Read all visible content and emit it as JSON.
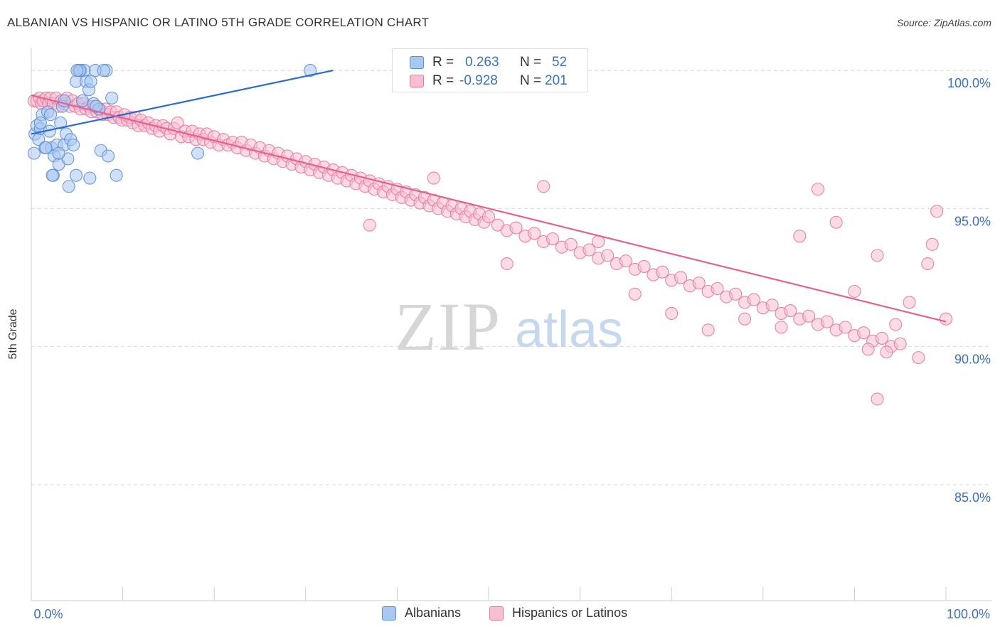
{
  "title": "ALBANIAN VS HISPANIC OR LATINO 5TH GRADE CORRELATION CHART",
  "source": "Source: ZipAtlas.com",
  "watermark": {
    "zip": "ZIP",
    "atlas": "atlas"
  },
  "legend": {
    "rows": [
      {
        "r_label": "R =",
        "r_value": "0.263",
        "n_label": "N =",
        "n_value": "52"
      },
      {
        "r_label": "R =",
        "r_value": "-0.928",
        "n_label": "N =",
        "n_value": "201"
      }
    ]
  },
  "colors": {
    "albanian_fill": "#a9c8f0",
    "albanian_stroke": "#5b8fd6",
    "albanian_line": "#2a6ccf",
    "hispanic_fill": "#f8bfd2",
    "hispanic_stroke": "#e9789f",
    "hispanic_line": "#e4628f",
    "tick_label": "#3b6fc9",
    "grid": "#d9d9d9"
  },
  "chart_data": {
    "type": "scatter",
    "title": "ALBANIAN VS HISPANIC OR LATINO 5TH GRADE CORRELATION CHART",
    "xlabel": "",
    "ylabel": "5th Grade",
    "xlim": [
      0,
      100
    ],
    "ylim": [
      80.8,
      100.8
    ],
    "x_tick_labels": [
      "0.0%",
      "100.0%"
    ],
    "y_ticks": [
      85,
      90,
      95,
      100
    ],
    "y_tick_labels": [
      "85.0%",
      "90.0%",
      "95.0%",
      "100.0%"
    ],
    "grid": "horizontal dashed",
    "legend_placement": "top-center",
    "series": [
      {
        "name": "Albanians",
        "r": 0.263,
        "n": 52,
        "trend": {
          "x": [
            0,
            33.0
          ],
          "y": [
            97.7,
            100.0
          ]
        },
        "points": [
          [
            0.4,
            97.7
          ],
          [
            0.6,
            98.0
          ],
          [
            0.8,
            97.5
          ],
          [
            1.0,
            97.9
          ],
          [
            1.2,
            98.4
          ],
          [
            1.5,
            97.2
          ],
          [
            1.8,
            98.5
          ],
          [
            2.0,
            97.8
          ],
          [
            2.2,
            97.2
          ],
          [
            2.5,
            96.9
          ],
          [
            2.4,
            96.2
          ],
          [
            2.8,
            97.3
          ],
          [
            3.0,
            96.6
          ],
          [
            3.2,
            98.1
          ],
          [
            3.4,
            98.7
          ],
          [
            3.6,
            97.3
          ],
          [
            3.8,
            97.7
          ],
          [
            4.0,
            96.8
          ],
          [
            4.1,
            95.8
          ],
          [
            4.3,
            97.5
          ],
          [
            4.6,
            97.3
          ],
          [
            4.9,
            99.6
          ],
          [
            5.2,
            100.0
          ],
          [
            5.4,
            100.0
          ],
          [
            5.6,
            98.9
          ],
          [
            5.8,
            100.0
          ],
          [
            6.0,
            99.6
          ],
          [
            6.3,
            99.3
          ],
          [
            6.5,
            99.6
          ],
          [
            6.8,
            98.8
          ],
          [
            7.0,
            100.0
          ],
          [
            7.4,
            98.6
          ],
          [
            7.6,
            97.1
          ],
          [
            8.2,
            100.0
          ],
          [
            8.4,
            96.9
          ],
          [
            8.8,
            99.0
          ],
          [
            9.3,
            96.2
          ],
          [
            0.3,
            97.0
          ],
          [
            1.0,
            98.1
          ],
          [
            1.6,
            97.2
          ],
          [
            2.3,
            96.2
          ],
          [
            3.0,
            97.0
          ],
          [
            4.9,
            96.2
          ],
          [
            5.3,
            100.0
          ],
          [
            6.4,
            96.1
          ],
          [
            7.1,
            98.7
          ],
          [
            7.9,
            100.0
          ],
          [
            18.2,
            97.0
          ],
          [
            30.5,
            100.0
          ],
          [
            2.1,
            98.4
          ],
          [
            5.0,
            100.0
          ],
          [
            3.6,
            98.9
          ]
        ]
      },
      {
        "name": "Hispanics or Latinos",
        "r": -0.928,
        "n": 201,
        "trend": {
          "x": [
            0,
            100
          ],
          "y": [
            99.1,
            90.9
          ]
        },
        "points": [
          [
            0.3,
            98.9
          ],
          [
            0.6,
            98.9
          ],
          [
            0.9,
            99.0
          ],
          [
            1.1,
            98.8
          ],
          [
            1.3,
            98.9
          ],
          [
            1.6,
            99.0
          ],
          [
            1.9,
            98.8
          ],
          [
            2.1,
            99.0
          ],
          [
            2.4,
            98.8
          ],
          [
            2.7,
            99.0
          ],
          [
            3.0,
            98.7
          ],
          [
            3.3,
            98.9
          ],
          [
            3.6,
            98.8
          ],
          [
            3.9,
            99.0
          ],
          [
            4.2,
            98.7
          ],
          [
            4.5,
            98.9
          ],
          [
            4.8,
            98.7
          ],
          [
            5.1,
            98.8
          ],
          [
            5.4,
            98.6
          ],
          [
            5.7,
            98.8
          ],
          [
            6.0,
            98.6
          ],
          [
            6.3,
            98.7
          ],
          [
            6.6,
            98.5
          ],
          [
            6.9,
            98.7
          ],
          [
            7.2,
            98.5
          ],
          [
            7.5,
            98.6
          ],
          [
            7.8,
            98.4
          ],
          [
            8.1,
            98.6
          ],
          [
            8.4,
            98.4
          ],
          [
            8.7,
            98.5
          ],
          [
            9.0,
            98.3
          ],
          [
            9.3,
            98.5
          ],
          [
            9.6,
            98.3
          ],
          [
            9.9,
            98.2
          ],
          [
            10.2,
            98.4
          ],
          [
            10.5,
            98.2
          ],
          [
            10.8,
            98.3
          ],
          [
            11.1,
            98.1
          ],
          [
            11.4,
            98.3
          ],
          [
            11.7,
            98.0
          ],
          [
            12.0,
            98.2
          ],
          [
            12.4,
            98.0
          ],
          [
            12.8,
            98.1
          ],
          [
            13.2,
            97.9
          ],
          [
            13.6,
            98.0
          ],
          [
            14.0,
            97.8
          ],
          [
            14.4,
            98.0
          ],
          [
            14.8,
            97.9
          ],
          [
            15.2,
            97.7
          ],
          [
            15.6,
            97.9
          ],
          [
            16.0,
            98.1
          ],
          [
            16.4,
            97.6
          ],
          [
            16.8,
            97.8
          ],
          [
            17.2,
            97.6
          ],
          [
            17.6,
            97.8
          ],
          [
            18.0,
            97.5
          ],
          [
            18.4,
            97.7
          ],
          [
            18.8,
            97.5
          ],
          [
            19.2,
            97.7
          ],
          [
            19.6,
            97.4
          ],
          [
            20.0,
            97.6
          ],
          [
            20.5,
            97.3
          ],
          [
            21.0,
            97.5
          ],
          [
            21.5,
            97.3
          ],
          [
            22.0,
            97.4
          ],
          [
            22.5,
            97.2
          ],
          [
            23.0,
            97.4
          ],
          [
            23.5,
            97.1
          ],
          [
            24.0,
            97.3
          ],
          [
            24.5,
            97.0
          ],
          [
            25.0,
            97.2
          ],
          [
            25.5,
            96.9
          ],
          [
            26.0,
            97.1
          ],
          [
            26.5,
            96.8
          ],
          [
            27.0,
            97.0
          ],
          [
            27.5,
            96.7
          ],
          [
            28.0,
            96.9
          ],
          [
            28.5,
            96.6
          ],
          [
            29.0,
            96.8
          ],
          [
            29.5,
            96.5
          ],
          [
            30.0,
            96.7
          ],
          [
            30.5,
            96.4
          ],
          [
            31.0,
            96.6
          ],
          [
            31.5,
            96.3
          ],
          [
            32.0,
            96.5
          ],
          [
            32.5,
            96.2
          ],
          [
            33.0,
            96.4
          ],
          [
            33.5,
            96.1
          ],
          [
            34.0,
            96.3
          ],
          [
            34.5,
            96.0
          ],
          [
            35.0,
            96.2
          ],
          [
            35.5,
            95.9
          ],
          [
            36.0,
            96.1
          ],
          [
            36.5,
            95.8
          ],
          [
            37.0,
            96.0
          ],
          [
            37.5,
            95.7
          ],
          [
            38.0,
            95.9
          ],
          [
            38.5,
            95.6
          ],
          [
            39.0,
            95.8
          ],
          [
            39.5,
            95.5
          ],
          [
            40.0,
            95.7
          ],
          [
            40.5,
            95.4
          ],
          [
            41.0,
            95.6
          ],
          [
            41.5,
            95.3
          ],
          [
            42.0,
            95.5
          ],
          [
            42.5,
            95.2
          ],
          [
            43.0,
            95.4
          ],
          [
            43.5,
            95.1
          ],
          [
            44.0,
            95.3
          ],
          [
            44.5,
            95.0
          ],
          [
            45.0,
            95.2
          ],
          [
            45.5,
            94.9
          ],
          [
            46.0,
            95.1
          ],
          [
            46.5,
            94.8
          ],
          [
            47.0,
            95.0
          ],
          [
            47.5,
            94.7
          ],
          [
            48.0,
            94.9
          ],
          [
            48.5,
            94.6
          ],
          [
            49.0,
            94.8
          ],
          [
            49.5,
            94.5
          ],
          [
            50.0,
            94.7
          ],
          [
            51.0,
            94.4
          ],
          [
            52.0,
            94.2
          ],
          [
            53.0,
            94.3
          ],
          [
            54.0,
            94.0
          ],
          [
            55.0,
            94.1
          ],
          [
            56.0,
            93.8
          ],
          [
            57.0,
            93.9
          ],
          [
            58.0,
            93.6
          ],
          [
            59.0,
            93.7
          ],
          [
            60.0,
            93.4
          ],
          [
            61.0,
            93.5
          ],
          [
            62.0,
            93.2
          ],
          [
            63.0,
            93.3
          ],
          [
            64.0,
            93.0
          ],
          [
            65.0,
            93.1
          ],
          [
            66.0,
            92.8
          ],
          [
            67.0,
            92.9
          ],
          [
            68.0,
            92.6
          ],
          [
            69.0,
            92.7
          ],
          [
            70.0,
            92.4
          ],
          [
            71.0,
            92.5
          ],
          [
            72.0,
            92.2
          ],
          [
            73.0,
            92.3
          ],
          [
            74.0,
            92.0
          ],
          [
            75.0,
            92.1
          ],
          [
            76.0,
            91.8
          ],
          [
            77.0,
            91.9
          ],
          [
            78.0,
            91.6
          ],
          [
            79.0,
            91.7
          ],
          [
            80.0,
            91.4
          ],
          [
            81.0,
            91.5
          ],
          [
            82.0,
            91.2
          ],
          [
            83.0,
            91.3
          ],
          [
            84.0,
            91.0
          ],
          [
            85.0,
            91.1
          ],
          [
            86.0,
            90.8
          ],
          [
            87.0,
            90.9
          ],
          [
            88.0,
            90.6
          ],
          [
            89.0,
            90.7
          ],
          [
            90.0,
            90.4
          ],
          [
            91.0,
            90.5
          ],
          [
            92.0,
            90.2
          ],
          [
            93.0,
            90.3
          ],
          [
            94.0,
            90.0
          ],
          [
            95.0,
            90.1
          ],
          [
            37.0,
            94.4
          ],
          [
            44.0,
            96.1
          ],
          [
            52.0,
            93.0
          ],
          [
            56.0,
            95.8
          ],
          [
            62.0,
            93.8
          ],
          [
            66.0,
            91.9
          ],
          [
            70.0,
            91.2
          ],
          [
            74.0,
            90.6
          ],
          [
            78.0,
            91.0
          ],
          [
            82.0,
            90.7
          ],
          [
            84.0,
            94.0
          ],
          [
            86.0,
            95.7
          ],
          [
            88.0,
            94.5
          ],
          [
            90.0,
            92.0
          ],
          [
            91.5,
            89.9
          ],
          [
            92.5,
            93.3
          ],
          [
            94.5,
            90.8
          ],
          [
            96.0,
            91.6
          ],
          [
            97.0,
            89.6
          ],
          [
            98.0,
            93.0
          ],
          [
            98.5,
            93.7
          ],
          [
            99.0,
            94.9
          ],
          [
            100.0,
            91.0
          ],
          [
            92.5,
            88.1
          ],
          [
            93.5,
            89.8
          ]
        ]
      }
    ]
  },
  "bottom_legend": {
    "items": [
      {
        "label": "Albanians"
      },
      {
        "label": "Hispanics or Latinos"
      }
    ]
  }
}
